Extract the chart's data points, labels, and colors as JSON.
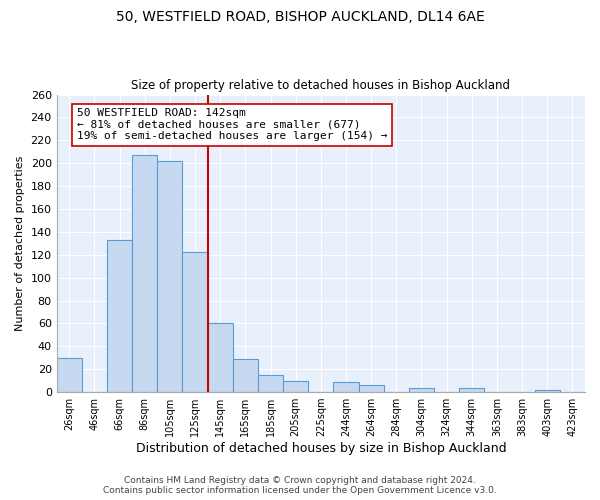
{
  "title": "50, WESTFIELD ROAD, BISHOP AUCKLAND, DL14 6AE",
  "subtitle": "Size of property relative to detached houses in Bishop Auckland",
  "xlabel": "Distribution of detached houses by size in Bishop Auckland",
  "ylabel": "Number of detached properties",
  "bar_labels": [
    "26sqm",
    "46sqm",
    "66sqm",
    "86sqm",
    "105sqm",
    "125sqm",
    "145sqm",
    "165sqm",
    "185sqm",
    "205sqm",
    "225sqm",
    "244sqm",
    "264sqm",
    "284sqm",
    "304sqm",
    "324sqm",
    "344sqm",
    "363sqm",
    "383sqm",
    "403sqm",
    "423sqm"
  ],
  "bar_values": [
    30,
    0,
    133,
    207,
    202,
    122,
    60,
    29,
    15,
    10,
    0,
    9,
    6,
    0,
    4,
    0,
    4,
    0,
    0,
    2,
    0
  ],
  "bar_color": "#c6d9f0",
  "bar_edge_color": "#5b9bd5",
  "vline_index": 6,
  "vline_color": "#cc0000",
  "annotation_title": "50 WESTFIELD ROAD: 142sqm",
  "annotation_line1": "← 81% of detached houses are smaller (677)",
  "annotation_line2": "19% of semi-detached houses are larger (154) →",
  "annotation_box_color": "#ffffff",
  "annotation_box_edge": "#cc0000",
  "ylim": [
    0,
    260
  ],
  "yticks": [
    0,
    20,
    40,
    60,
    80,
    100,
    120,
    140,
    160,
    180,
    200,
    220,
    240,
    260
  ],
  "footer1": "Contains HM Land Registry data © Crown copyright and database right 2024.",
  "footer2": "Contains public sector information licensed under the Open Government Licence v3.0.",
  "bg_color": "#ffffff",
  "plot_bg_color": "#e8f0fb"
}
